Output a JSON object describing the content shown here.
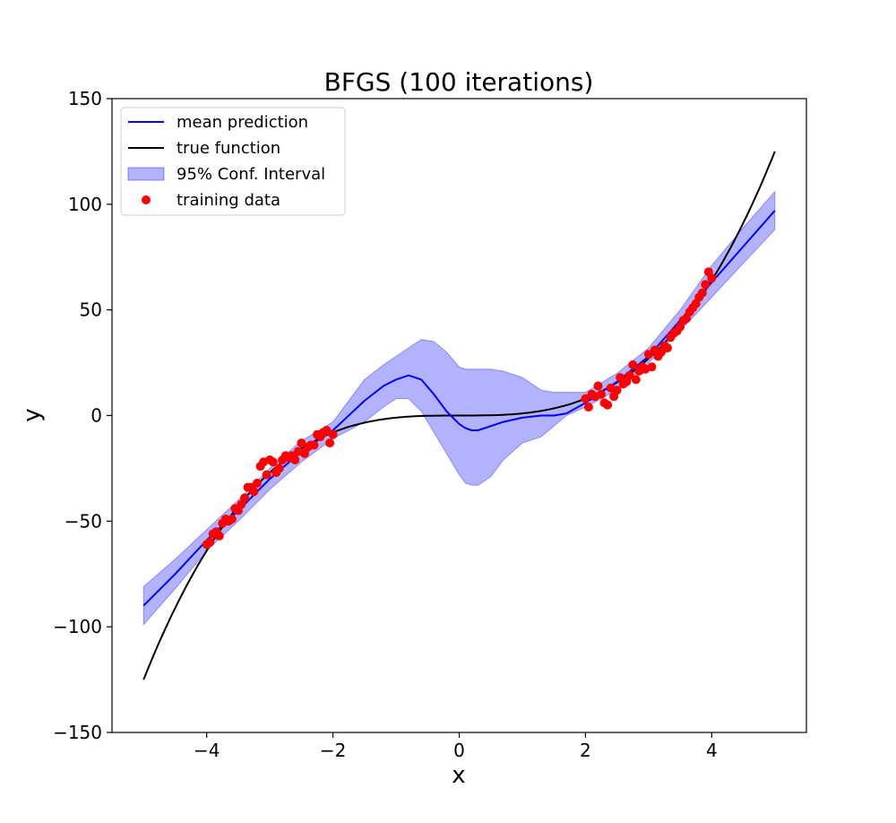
{
  "chart_data": {
    "type": "line",
    "title": "BFGS (100 iterations)",
    "xlabel": "x",
    "ylabel": "y",
    "xlim": [
      -5.5,
      5.5
    ],
    "ylim": [
      -150,
      150
    ],
    "xticks": [
      -4,
      -2,
      0,
      2,
      4
    ],
    "xtick_labels": [
      "−4",
      "−2",
      "0",
      "2",
      "4"
    ],
    "yticks": [
      -150,
      -100,
      -50,
      0,
      50,
      100,
      150
    ],
    "ytick_labels": [
      "−150",
      "−100",
      "−50",
      "0",
      "50",
      "100",
      "150"
    ],
    "grid": false,
    "legend_placement": "upper-left",
    "legend": [
      {
        "label": "mean prediction",
        "kind": "line",
        "color": "#0000ff"
      },
      {
        "label": "true function",
        "kind": "line",
        "color": "#000000"
      },
      {
        "label": "95% Conf. Interval",
        "kind": "patch",
        "color": "#0000ff",
        "alpha": 0.3
      },
      {
        "label": "training data",
        "kind": "marker",
        "color": "#ff0000"
      }
    ],
    "series": [
      {
        "name": "mean prediction",
        "color": "#0000ff",
        "x": [
          -5.0,
          -4.5,
          -4.0,
          -3.5,
          -3.0,
          -2.5,
          -2.0,
          -1.5,
          -1.2,
          -1.0,
          -0.8,
          -0.6,
          -0.4,
          -0.2,
          0.0,
          0.1,
          0.2,
          0.3,
          0.5,
          0.7,
          1.0,
          1.3,
          1.5,
          1.7,
          2.0,
          2.5,
          3.0,
          3.5,
          4.0,
          4.5,
          5.0
        ],
        "y": [
          -90,
          -75,
          -59,
          -45,
          -30,
          -17,
          -7,
          7,
          14,
          17,
          19,
          17,
          10,
          2,
          -4,
          -6,
          -7,
          -7,
          -5,
          -3,
          -1,
          0,
          0,
          1,
          6,
          16,
          28,
          45,
          63,
          80,
          97
        ]
      },
      {
        "name": "true function",
        "color": "#000000",
        "function": "x^3",
        "x_range": [
          -5,
          5
        ]
      },
      {
        "name": "95% Conf. Interval",
        "color": "#0000ff",
        "alpha": 0.3,
        "x": [
          -5.0,
          -4.5,
          -4.0,
          -3.5,
          -3.0,
          -2.5,
          -2.0,
          -1.5,
          -1.2,
          -1.0,
          -0.8,
          -0.6,
          -0.4,
          -0.2,
          0.0,
          0.1,
          0.2,
          0.3,
          0.5,
          0.7,
          1.0,
          1.3,
          1.5,
          1.7,
          2.0,
          2.5,
          3.0,
          3.5,
          4.0,
          4.5,
          5.0
        ],
        "lower": [
          -99,
          -82,
          -64,
          -50,
          -35,
          -22,
          -11,
          -3,
          4,
          8,
          8,
          2,
          -8,
          -18,
          -28,
          -32,
          -33,
          -33,
          -29,
          -21,
          -13,
          -10,
          -5,
          0,
          4,
          12,
          25,
          40,
          56,
          72,
          88
        ],
        "upper": [
          -81,
          -68,
          -54,
          -40,
          -25,
          -12,
          -3,
          17,
          24,
          28,
          32,
          36,
          35,
          30,
          23,
          22,
          22,
          22,
          22,
          21,
          18,
          12,
          11,
          11,
          11,
          20,
          32,
          50,
          71,
          89,
          106
        ]
      },
      {
        "name": "training data",
        "color": "#ff0000",
        "type": "scatter",
        "x": [
          -4.0,
          -3.95,
          -3.9,
          -3.85,
          -3.8,
          -3.75,
          -3.7,
          -3.65,
          -3.6,
          -3.55,
          -3.5,
          -3.45,
          -3.4,
          -3.35,
          -3.3,
          -3.25,
          -3.2,
          -3.15,
          -3.1,
          -3.05,
          -3.0,
          -2.95,
          -2.9,
          -2.85,
          -2.8,
          -2.75,
          -2.7,
          -2.65,
          -2.6,
          -2.55,
          -2.5,
          -2.45,
          -2.4,
          -2.35,
          -2.3,
          -2.25,
          -2.2,
          -2.15,
          -2.1,
          -2.05,
          -2.0,
          2.0,
          2.05,
          2.1,
          2.15,
          2.2,
          2.25,
          2.3,
          2.35,
          2.4,
          2.45,
          2.5,
          2.55,
          2.6,
          2.65,
          2.7,
          2.75,
          2.8,
          2.85,
          2.9,
          2.95,
          3.0,
          3.05,
          3.1,
          3.15,
          3.2,
          3.25,
          3.3,
          3.35,
          3.4,
          3.45,
          3.5,
          3.55,
          3.6,
          3.65,
          3.7,
          3.75,
          3.8,
          3.85,
          3.9,
          3.95,
          4.0
        ],
        "y": [
          -61,
          -60,
          -56,
          -55,
          -57,
          -51,
          -49,
          -50,
          -49,
          -44,
          -45,
          -42,
          -39,
          -34,
          -34,
          -36,
          -32,
          -24,
          -22,
          -28,
          -21,
          -22,
          -27,
          -25,
          -21,
          -19,
          -20,
          -19,
          -21,
          -17,
          -13,
          -18,
          -15,
          -14,
          -14,
          -9,
          -10,
          -8,
          -7,
          -13,
          -9,
          8,
          4,
          10,
          9,
          14,
          10,
          6,
          5,
          13,
          9,
          12,
          18,
          15,
          16,
          19,
          24,
          17,
          21,
          23,
          22,
          29,
          23,
          31,
          28,
          30,
          33,
          32,
          37,
          39,
          40,
          42,
          45,
          46,
          49,
          51,
          53,
          56,
          58,
          62,
          68,
          65
        ]
      }
    ]
  }
}
